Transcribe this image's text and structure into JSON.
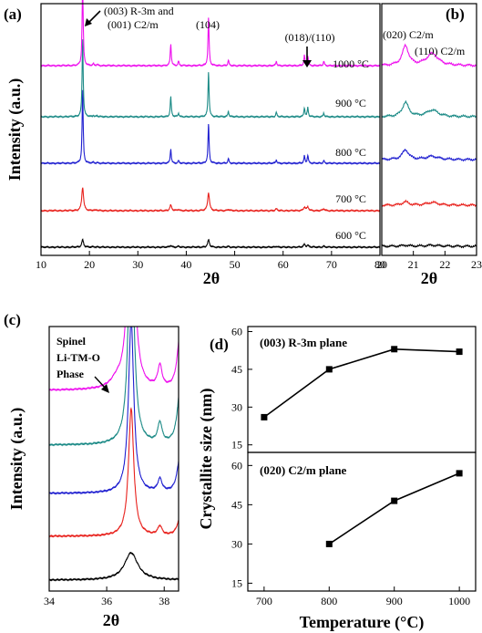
{
  "chart_data": [
    {
      "panel": "(a)",
      "type": "line",
      "xlabel": "2θ",
      "ylabel": "Intensity (a.u.)",
      "xlim": [
        10,
        80
      ],
      "xticks": [
        "10",
        "20",
        "30",
        "40",
        "50",
        "60",
        "70",
        "80"
      ],
      "series": [
        {
          "name": "600 °C",
          "color": "#000000",
          "offset": 0
        },
        {
          "name": "700 °C",
          "color": "#e8211c",
          "offset": 1
        },
        {
          "name": "800 °C",
          "color": "#1f1fd0",
          "offset": 2
        },
        {
          "name": "900 °C",
          "color": "#1b8a86",
          "offset": 3
        },
        {
          "name": "1000 °C",
          "color": "#ee10ee",
          "offset": 4
        }
      ],
      "peaks": [
        {
          "x": 18.6,
          "h": [
            8,
            26,
            80,
            86,
            92
          ]
        },
        {
          "x": 20.8,
          "h": [
            0.4,
            0.6,
            1.0,
            1.5,
            2
          ]
        },
        {
          "x": 21.6,
          "h": [
            0.3,
            0.5,
            0.8,
            1.2,
            1.6
          ]
        },
        {
          "x": 36.8,
          "h": [
            2,
            6,
            16,
            22,
            24
          ]
        },
        {
          "x": 38.4,
          "h": [
            0.8,
            1.5,
            3,
            4,
            5
          ]
        },
        {
          "x": 44.6,
          "h": [
            8,
            20,
            44,
            50,
            54
          ]
        },
        {
          "x": 48.7,
          "h": [
            0.8,
            1.5,
            5,
            6,
            6
          ]
        },
        {
          "x": 58.6,
          "h": [
            1,
            2,
            4,
            5,
            5
          ]
        },
        {
          "x": 64.4,
          "h": [
            3,
            4,
            8,
            10,
            11
          ]
        },
        {
          "x": 65.1,
          "h": [
            2,
            4,
            9,
            10,
            11
          ]
        },
        {
          "x": 68.4,
          "h": [
            1,
            2,
            3,
            4,
            5
          ]
        }
      ],
      "annotations": [
        "(003) R-3m and",
        "(001) C2/m",
        "(104)",
        "(018)/(110)"
      ]
    },
    {
      "panel": "(b)",
      "type": "line",
      "xlabel": "2θ",
      "xlim": [
        20,
        23
      ],
      "xticks": [
        "20",
        "21",
        "22",
        "23"
      ],
      "series": [
        {
          "name": "600 °C",
          "color": "#000000",
          "p1": 0.1,
          "p2": 0.1
        },
        {
          "name": "700 °C",
          "color": "#e8211c",
          "p1": 0.3,
          "p2": 0.25
        },
        {
          "name": "800 °C",
          "color": "#1f1fd0",
          "p1": 0.9,
          "p2": 0.3
        },
        {
          "name": "900 °C",
          "color": "#1b8a86",
          "p1": 1.3,
          "p2": 0.6
        },
        {
          "name": "1000 °C",
          "color": "#ee10ee",
          "p1": 1.8,
          "p2": 1.1
        }
      ],
      "peaks_x": [
        20.75,
        21.6
      ],
      "annotations": [
        "(020) C2/m",
        "(110) C2/m"
      ]
    },
    {
      "panel": "(c)",
      "type": "line",
      "xlabel": "2θ",
      "ylabel": "Intensity (a.u.)",
      "xlim": [
        34,
        38.5
      ],
      "xticks": [
        "34",
        "36",
        "38"
      ],
      "series": [
        {
          "name": "600 °C",
          "color": "#000000"
        },
        {
          "name": "700 °C",
          "color": "#e8211c"
        },
        {
          "name": "800 °C",
          "color": "#1f1fd0"
        },
        {
          "name": "900 °C",
          "color": "#1b8a86"
        },
        {
          "name": "1000 °C",
          "color": "#ee10ee"
        }
      ],
      "annotations": [
        "Spinel",
        "Li-TM-O",
        "Phase"
      ]
    },
    {
      "panel": "(d)",
      "type": "scatter",
      "xlabel": "Temperature (°C)",
      "ylabel": "Crystallite size (nm)",
      "xlim": [
        675,
        1025
      ],
      "xticks": [
        "700",
        "800",
        "900",
        "1000"
      ],
      "subplots": [
        {
          "title": "(003) R-3m plane",
          "ylim": [
            12,
            62
          ],
          "yticks": [
            "15",
            "30",
            "45",
            "60"
          ],
          "x": [
            700,
            800,
            900,
            1000
          ],
          "y": [
            26,
            45,
            53,
            52
          ]
        },
        {
          "title": "(020) C2/m plane",
          "ylim": [
            12,
            65
          ],
          "yticks": [
            "15",
            "30",
            "45",
            "60"
          ],
          "x": [
            800,
            900,
            1000
          ],
          "y": [
            30,
            46.5,
            57
          ]
        }
      ]
    }
  ]
}
